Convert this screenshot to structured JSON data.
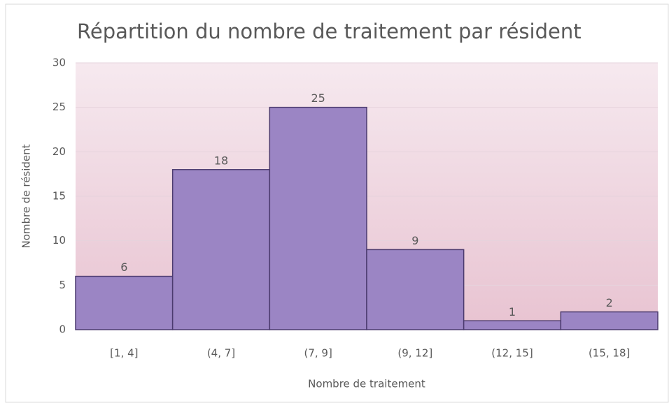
{
  "chart_data": {
    "type": "bar",
    "title": "Répartition du nombre de traitement par résident",
    "x_label": "Nombre de traitement",
    "y_label": "Nombre de résident",
    "categories": [
      "[1, 4]",
      "(4, 7]",
      "(7, 9]",
      "(9, 12]",
      "(12, 15]",
      "(15, 18]"
    ],
    "values": [
      6,
      18,
      25,
      9,
      1,
      2
    ],
    "color": "#9b85c4",
    "ylim": [
      0,
      30
    ],
    "yticks": [
      0,
      5,
      10,
      15,
      20,
      25,
      30
    ],
    "grid": true
  }
}
